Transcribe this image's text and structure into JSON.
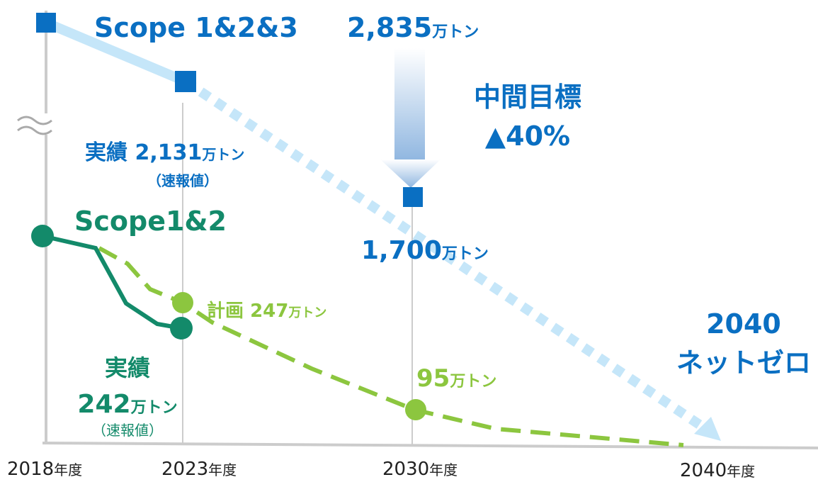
{
  "scope3": {
    "title": "Scope 1&2&3",
    "base": "2,835",
    "actual_label": "実績",
    "actual": "2,131",
    "actual_note": "（速報値）",
    "target_2030": "1,700",
    "milestone": "中間目標",
    "reduction": "▲40%",
    "goal_year": "2040",
    "goal": "ネットゼロ"
  },
  "scope12": {
    "title": "Scope1&2",
    "plan_label": "計画",
    "plan": "247",
    "target_2030": "95",
    "actual_label": "実績",
    "actual": "242",
    "actual_note": "（速報値）"
  },
  "unit": "万トン",
  "years": [
    "2018",
    "2023",
    "2030",
    "2040"
  ],
  "year_unit": "年度"
}
